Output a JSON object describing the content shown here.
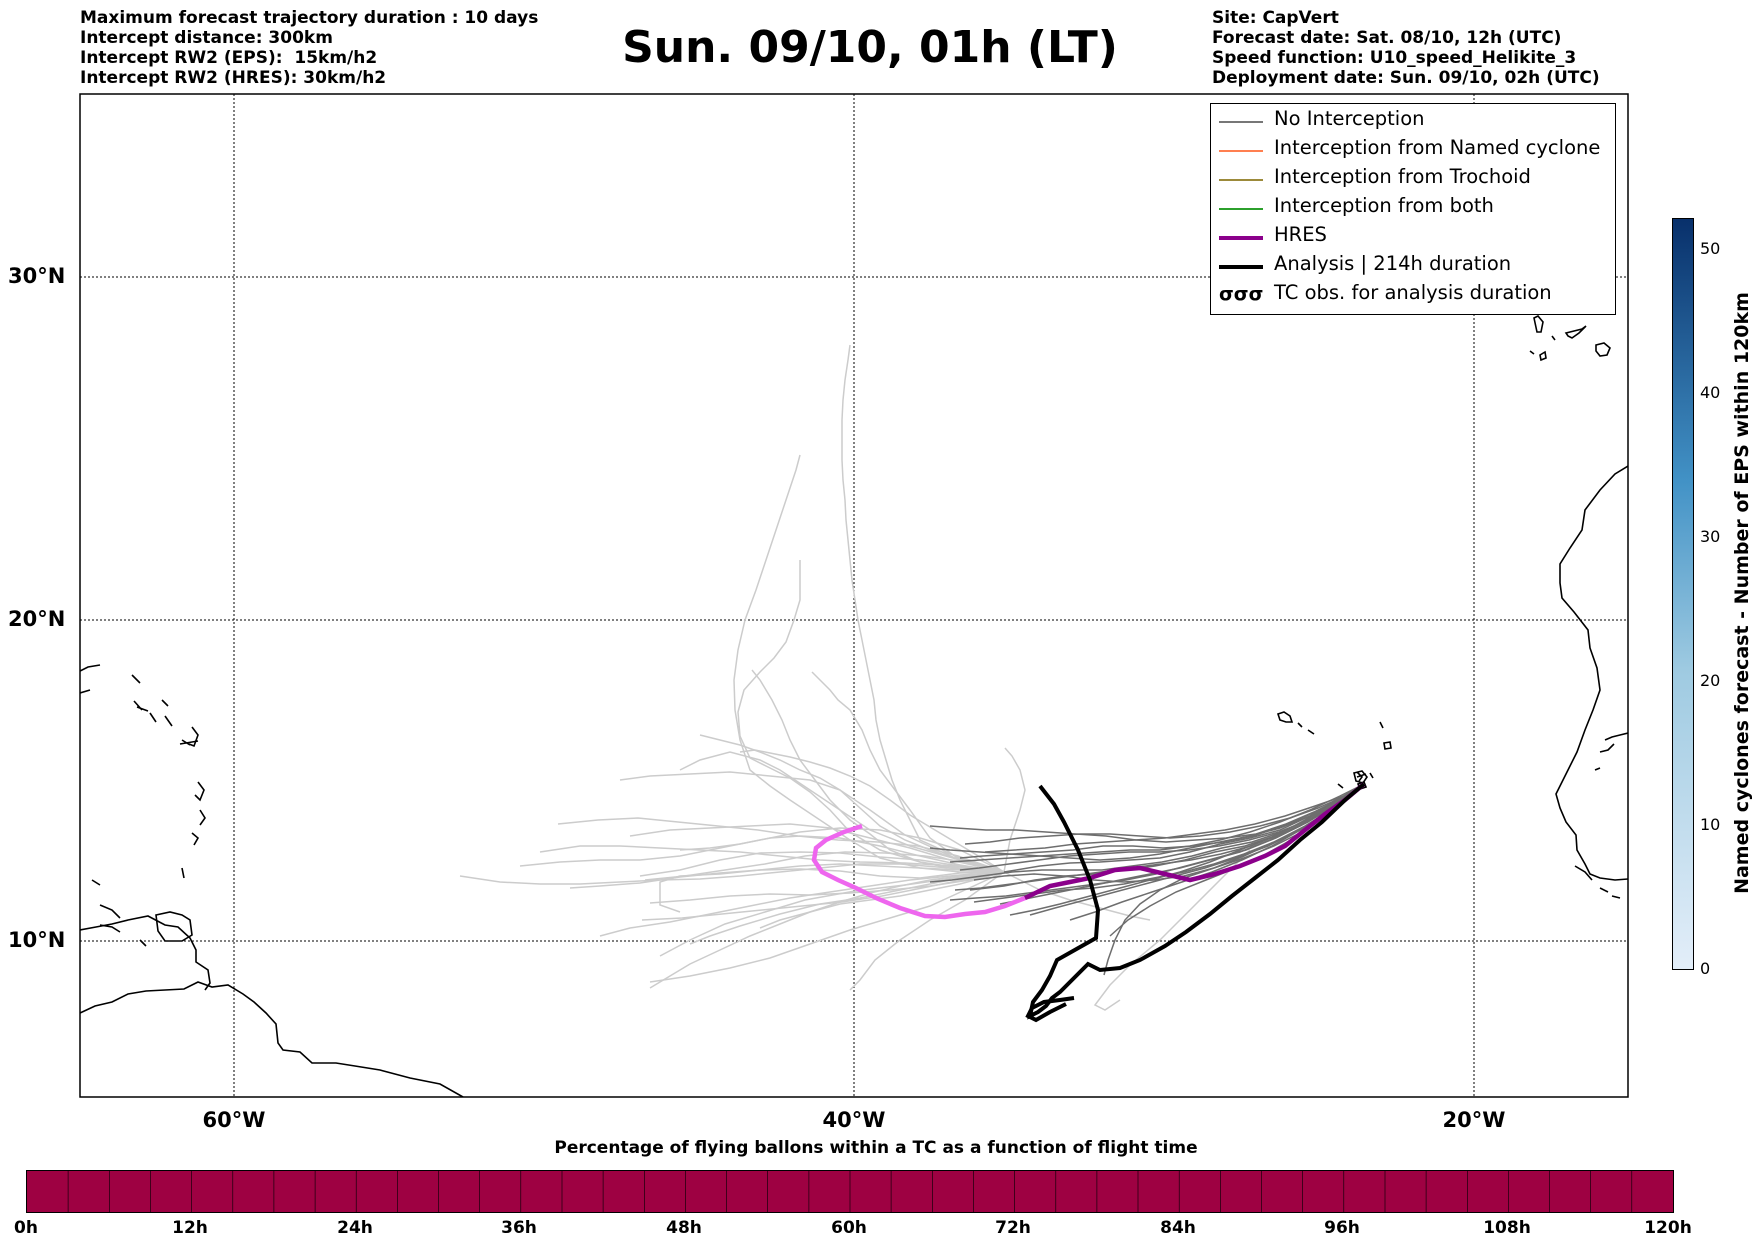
{
  "header": {
    "left_lines": [
      "Maximum forecast trajectory duration : 10 days",
      "Intercept distance: 300km",
      "Intercept RW2 (EPS):  15km/h2",
      "Intercept RW2 (HRES): 30km/h2"
    ],
    "title": "Sun. 09/10, 01h (LT)",
    "right_lines": [
      "Site: CapVert",
      "Forecast date: Sat. 08/10, 12h (UTC)",
      "Speed function: U10_speed_Helikite_3",
      "Deployment date: Sun. 09/10, 02h (UTC)"
    ]
  },
  "map": {
    "lat_labels": [
      "30°N",
      "20°N",
      "10°N"
    ],
    "lon_labels": [
      "60°W",
      "40°W",
      "20°W"
    ]
  },
  "legend": {
    "items": [
      {
        "label": "No Interception",
        "color": "#777777",
        "style": "thin"
      },
      {
        "label": "Interception from Named cyclone",
        "color": "#ff7f50",
        "style": "thin"
      },
      {
        "label": "Interception from Trochoid",
        "color": "#9c8a3a",
        "style": "thin"
      },
      {
        "label": "Interception from both",
        "color": "#2ca02c",
        "style": "thin"
      },
      {
        "label": "HRES",
        "color": "#8b008b",
        "style": "thick"
      },
      {
        "label": "Analysis | 214h duration",
        "color": "#000000",
        "style": "thick"
      },
      {
        "label": "TC obs. for analysis duration",
        "color": "#000000",
        "style": "symbol"
      }
    ],
    "tc_symbol": "σσσ"
  },
  "colorbar_vertical": {
    "label": "Named cyclones forecast - Number of EPS within 120km",
    "ticks": [
      "0",
      "10",
      "20",
      "30",
      "40",
      "50"
    ],
    "min": 0,
    "max": 52,
    "color_low": "#e3eef9",
    "color_high": "#08306b"
  },
  "colorbar_horizontal": {
    "label": "Percentage of flying ballons within a TC as a function of flight time",
    "ticks": [
      "0h",
      "12h",
      "24h",
      "36h",
      "48h",
      "60h",
      "72h",
      "84h",
      "96h",
      "108h",
      "120h"
    ],
    "fill_color": "#9e0142"
  },
  "colors": {
    "eps_far": "#cccccc",
    "eps_near": "#6e6e6e",
    "hres": "#8b008b",
    "hres_far": "#ee66ee",
    "analysis": "#000000"
  }
}
